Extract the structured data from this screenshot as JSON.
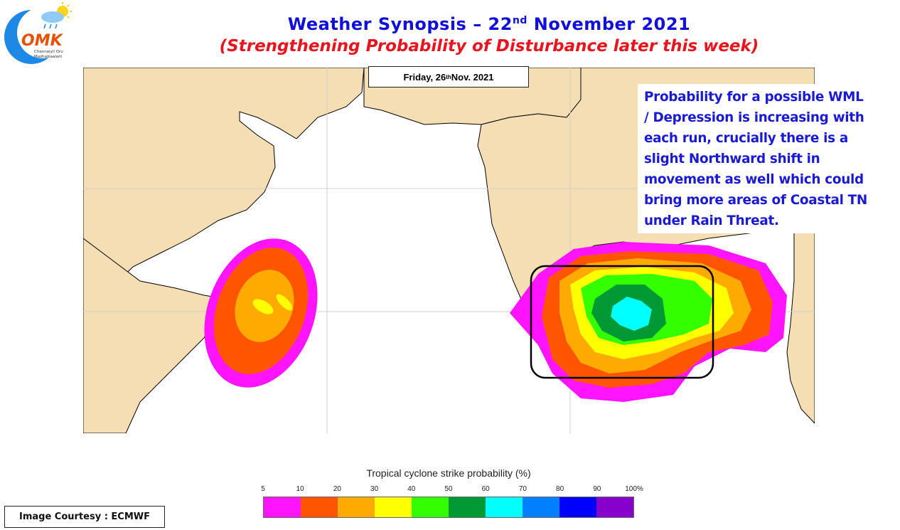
{
  "logo": {
    "text": "OMK",
    "tagline_line1": "Chennaiyil Oru",
    "tagline_line2": "Mazhaikaalam"
  },
  "header": {
    "title_prefix": "Weather Synopsis – 22",
    "title_sup": "nd",
    "title_suffix": " November 2021",
    "subtitle": "(Strengthening Probability of Disturbance later this week)",
    "title_color": "#1010d8",
    "subtitle_color": "#e8141e"
  },
  "map": {
    "date_prefix": "Friday, 26",
    "date_sup": "th",
    "date_suffix": " Nov. 2021",
    "land_color": "#f5deb3",
    "sea_color": "#ffffff"
  },
  "note": {
    "text": "Probability for a possible WML / Depression is increasing with each run, crucially there is a slight Northward shift in movement as well which could bring more areas of Coastal TN under Rain Threat."
  },
  "legend": {
    "title": "Tropical cyclone strike probability (%)",
    "ticks": [
      "5",
      "10",
      "20",
      "30",
      "40",
      "50",
      "60",
      "70",
      "80",
      "90",
      "100%"
    ],
    "colors": [
      "#ff14ff",
      "#ff5500",
      "#ffaa00",
      "#ffff00",
      "#33ff00",
      "#009933",
      "#00ffff",
      "#0080ff",
      "#0000ff",
      "#8800cc"
    ]
  },
  "courtesy": {
    "text": "Image Courtesy : ECMWF"
  }
}
